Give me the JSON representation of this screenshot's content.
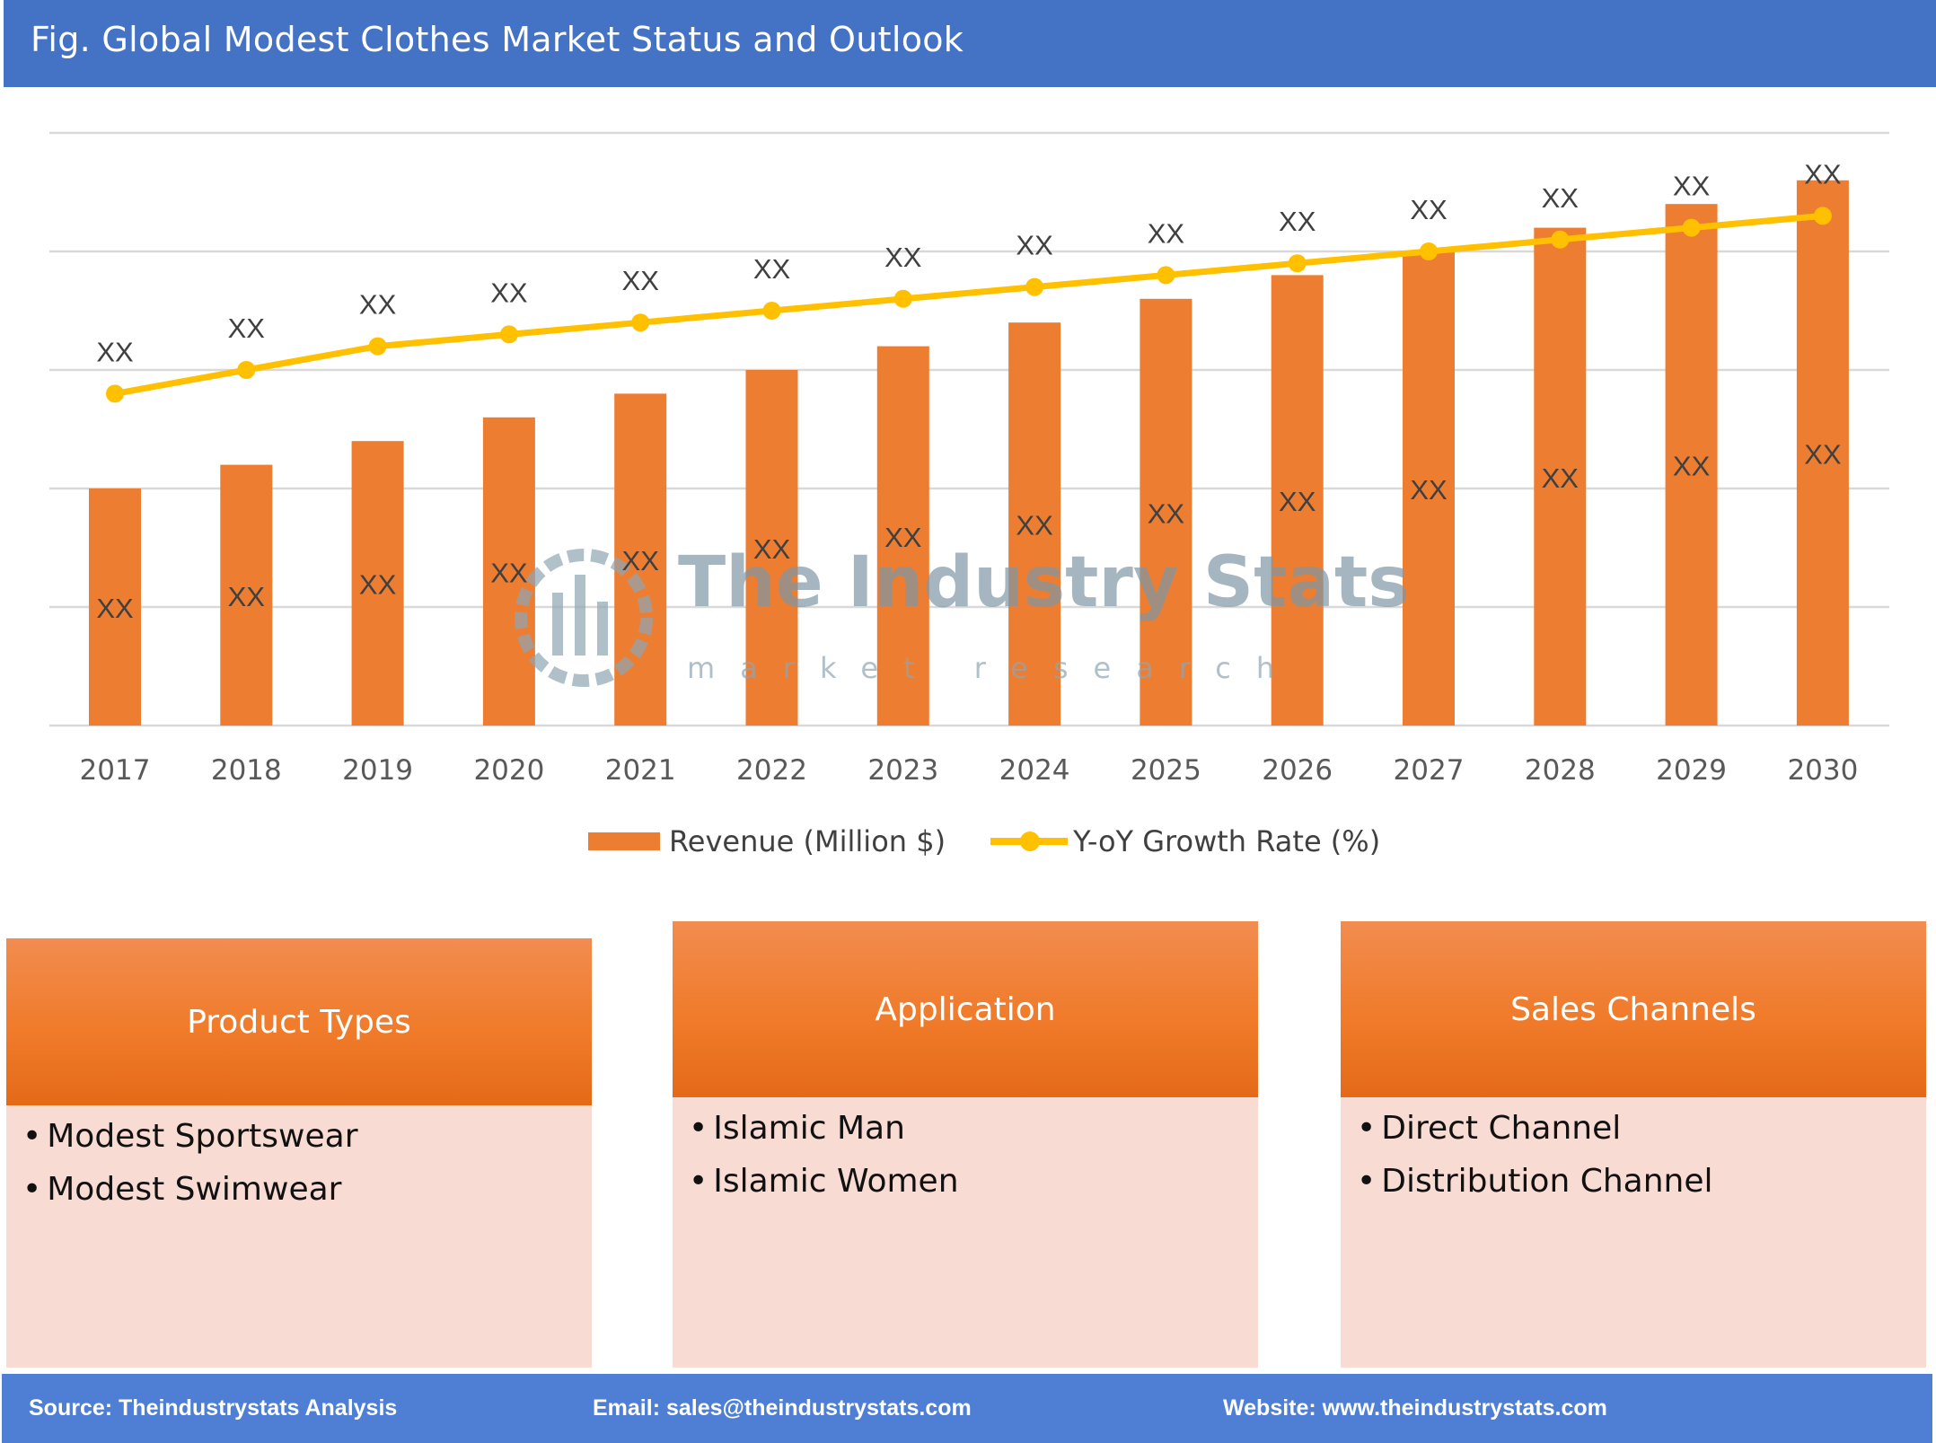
{
  "header": {
    "title": "Fig. Global Modest Clothes Market Status and Outlook"
  },
  "watermark": {
    "name": "The Industry Stats",
    "tagline": "market research"
  },
  "chart_data": {
    "type": "bar+line",
    "categories": [
      "2017",
      "2018",
      "2019",
      "2020",
      "2021",
      "2022",
      "2023",
      "2024",
      "2025",
      "2026",
      "2027",
      "2028",
      "2029",
      "2030"
    ],
    "series": [
      {
        "name": "Revenue (Million $)",
        "type": "bar",
        "color": "#ed7d31",
        "values": [
          2.0,
          2.2,
          2.4,
          2.6,
          2.8,
          3.0,
          3.2,
          3.4,
          3.6,
          3.8,
          4.0,
          4.2,
          4.4,
          4.6
        ],
        "labels": [
          "XX",
          "XX",
          "XX",
          "XX",
          "XX",
          "XX",
          "XX",
          "XX",
          "XX",
          "XX",
          "XX",
          "XX",
          "XX",
          "XX"
        ]
      },
      {
        "name": "Y-oY Growth Rate (%)",
        "type": "line",
        "color": "#ffc000",
        "values": [
          2.8,
          3.0,
          3.2,
          3.3,
          3.4,
          3.5,
          3.6,
          3.7,
          3.8,
          3.9,
          4.0,
          4.1,
          4.2,
          4.3
        ],
        "labels": [
          "XX",
          "XX",
          "XX",
          "XX",
          "XX",
          "XX",
          "XX",
          "XX",
          "XX",
          "XX",
          "XX",
          "XX",
          "XX",
          "XX"
        ]
      }
    ],
    "ylim": [
      0,
      5
    ],
    "grid": true,
    "y_tick_labels_shown": false,
    "legend": "bottom-center"
  },
  "legend": {
    "bar": "Revenue (Million $)",
    "line": "Y-oY Growth Rate (%)"
  },
  "segments": [
    {
      "title": "Product Types",
      "items": [
        "Modest Sportswear",
        "Modest Swimwear"
      ]
    },
    {
      "title": "Application",
      "items": [
        "Islamic Man",
        "Islamic Women"
      ]
    },
    {
      "title": "Sales Channels",
      "items": [
        "Direct Channel",
        "Distribution Channel"
      ]
    }
  ],
  "footer": {
    "source": "Source: Theindustrystats Analysis",
    "email": "Email: sales@theindustrystats.com",
    "website": "Website: www.theindustrystats.com"
  }
}
